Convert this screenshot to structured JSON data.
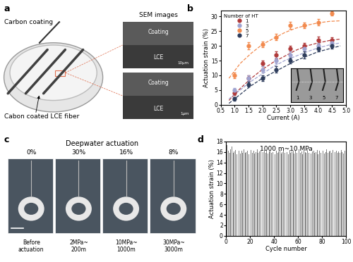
{
  "panel_labels": [
    "a",
    "b",
    "c",
    "d"
  ],
  "panel_a": {
    "brush_label": "Carbon coating",
    "sem_title": "SEM images",
    "sem_images": [
      {
        "coating": "Coating",
        "substrate": "LCE",
        "scale": "10μm"
      },
      {
        "coating": "Coating",
        "substrate": "LCE",
        "scale": "1μm"
      }
    ],
    "fiber_label": "Cabon coated LCE fiber"
  },
  "panel_c": {
    "title": "Deepwater actuation",
    "strain_labels": [
      "0%",
      "30%",
      "16%",
      "8%"
    ],
    "captions": [
      "Before\nactuation",
      "2MPa~\n200m",
      "10MPa~\n1000m",
      "30MPa~\n3000m"
    ]
  },
  "chart_data": [
    {
      "type": "scatter",
      "x_label": "Current (A)",
      "y_label": "Actuation strain (%)",
      "legend_title": "Number of HT",
      "legend": "upper left",
      "xlim": [
        0.5,
        5.0
      ],
      "xticks": [
        0.5,
        {
          "value": 1.0,
          "label": "1.0"
        },
        1.5,
        {
          "value": 2.0,
          "label": "2.0"
        },
        2.5,
        {
          "value": 3.0,
          "label": "3.0"
        },
        3.5,
        {
          "value": 4.0,
          "label": "4.0"
        },
        4.5,
        {
          "value": 5.0,
          "label": "5.0"
        }
      ],
      "ylim": [
        0,
        32
      ],
      "yticks": [
        0,
        5,
        10,
        15,
        20,
        25,
        30
      ],
      "x": [
        1.0,
        1.5,
        2.0,
        2.5,
        3.0,
        3.5,
        4.0,
        4.5
      ],
      "series": [
        {
          "name": "1",
          "color": "#b03a3a",
          "marker": "circle",
          "line_style": "dashed",
          "values": [
            4,
            9,
            14,
            17,
            19,
            20,
            22,
            22
          ],
          "error": [
            0.6,
            1.0,
            1.0,
            1.2,
            1.0,
            1.0,
            1.2,
            1.0
          ],
          "fit": {
            "x": [
              0.8,
              1.2,
              1.6,
              2.0,
              2.4,
              2.8,
              3.2,
              3.6,
              4.0,
              4.4,
              4.8
            ],
            "values": [
              1.5,
              5.5,
              9,
              12,
              14.5,
              16.5,
              18.5,
              20,
              21,
              21.8,
              22.3
            ]
          }
        },
        {
          "name": "3",
          "color": "#9fa3d0",
          "marker": "circle",
          "line_style": "dashed",
          "values": [
            5,
            9,
            12,
            15,
            17,
            19,
            20,
            21
          ],
          "error": [
            0.8,
            1.0,
            1.0,
            1.0,
            1.2,
            1.0,
            1.0,
            1.2
          ],
          "fit": {
            "x": [
              0.8,
              1.2,
              1.6,
              2.0,
              2.4,
              2.8,
              3.2,
              3.6,
              4.0,
              4.4,
              4.8
            ],
            "values": [
              2,
              5,
              8,
              10.5,
              13,
              15,
              16.5,
              18,
              19.3,
              20.3,
              21
            ]
          }
        },
        {
          "name": "5",
          "color": "#f28a4e",
          "marker": "circle",
          "line_style": "dashed",
          "values": [
            10,
            20,
            20.5,
            23,
            27,
            27,
            28,
            31
          ],
          "error": [
            1.0,
            1.2,
            1.0,
            1.0,
            1.2,
            1.0,
            1.0,
            0.8
          ],
          "fit": {
            "x": [
              0.8,
              1.2,
              1.6,
              2.0,
              2.4,
              2.8,
              3.2,
              3.6,
              4.0,
              4.4,
              4.8
            ],
            "values": [
              9,
              14,
              17.5,
              20.5,
              22.5,
              24.5,
              26,
              27,
              27.8,
              28.3,
              28.5
            ]
          }
        },
        {
          "name": "7",
          "color": "#2e3d5c",
          "marker": "circle",
          "line_style": "dashed",
          "values": [
            2,
            7,
            9,
            12,
            15,
            17,
            19,
            20
          ],
          "error": [
            0.5,
            0.8,
            1.0,
            1.0,
            1.0,
            1.2,
            1.0,
            1.0
          ],
          "fit": {
            "x": [
              0.8,
              1.2,
              1.6,
              2.0,
              2.4,
              2.8,
              3.2,
              3.6,
              4.0,
              4.4,
              4.8
            ],
            "values": [
              0.5,
              3.5,
              6.5,
              9,
              11,
              13,
              15,
              16.5,
              18,
              19,
              20
            ]
          }
        }
      ],
      "inset_labels": [
        "1",
        "3",
        "5",
        "7"
      ]
    },
    {
      "type": "bar",
      "x_label": "Cycle number",
      "y_label": "Actuation strain (%)",
      "annotations": [
        "1000 m~10 MPa"
      ],
      "color": "#808080",
      "xlim": [
        0,
        100
      ],
      "xticks": [
        0,
        20,
        40,
        60,
        80,
        100
      ],
      "ylim": [
        0,
        18
      ],
      "yticks": [
        0,
        2,
        4,
        6,
        8,
        10,
        12,
        14,
        16,
        18
      ],
      "x": [
        1,
        2,
        3,
        4,
        5,
        6,
        7,
        8,
        9,
        10,
        11,
        12,
        13,
        14,
        15,
        16,
        17,
        18,
        19,
        20,
        21,
        22,
        23,
        24,
        25,
        26,
        27,
        28,
        29,
        30,
        31,
        32,
        33,
        34,
        35,
        36,
        37,
        38,
        39,
        40,
        41,
        42,
        43,
        44,
        45,
        46,
        47,
        48,
        49,
        50,
        51,
        52,
        53,
        54,
        55,
        56,
        57,
        58,
        59,
        60,
        61,
        62,
        63,
        64,
        65,
        66,
        67,
        68,
        69,
        70,
        71,
        72,
        73,
        74,
        75,
        76,
        77,
        78,
        79,
        80,
        81,
        82,
        83,
        84,
        85,
        86,
        87,
        88,
        89,
        90,
        91,
        92,
        93,
        94,
        95,
        96,
        97,
        98,
        99,
        100
      ],
      "values": [
        17.3,
        16.2,
        15.9,
        16.5,
        17.0,
        15.8,
        16.1,
        16.4,
        15.6,
        16.0,
        16.3,
        15.7,
        16.2,
        15.9,
        16.5,
        15.8,
        16.0,
        16.3,
        15.5,
        16.1,
        16.4,
        15.9,
        16.2,
        15.7,
        16.0,
        16.5,
        15.8,
        16.1,
        16.3,
        15.6,
        16.0,
        16.4,
        15.9,
        16.2,
        15.7,
        16.1,
        16.3,
        15.8,
        16.0,
        16.5,
        15.6,
        16.2,
        15.9,
        16.1,
        16.4,
        15.7,
        16.0,
        16.3,
        15.8,
        16.2,
        16.0,
        15.6,
        16.4,
        15.9,
        16.1,
        16.3,
        15.7,
        16.2,
        15.8,
        16.0,
        16.5,
        15.9,
        16.1,
        15.6,
        16.3,
        16.0,
        15.8,
        16.4,
        15.9,
        16.2,
        15.7,
        16.1,
        16.3,
        15.8,
        16.0,
        16.4,
        15.6,
        16.2,
        15.9,
        16.1,
        16.3,
        15.7,
        16.0,
        16.5,
        15.8,
        16.1,
        16.2,
        15.9,
        16.4,
        15.7,
        16.0,
        16.3,
        15.8,
        16.1,
        15.9,
        16.4,
        16.0,
        15.7,
        16.2,
        16.3
      ]
    }
  ]
}
